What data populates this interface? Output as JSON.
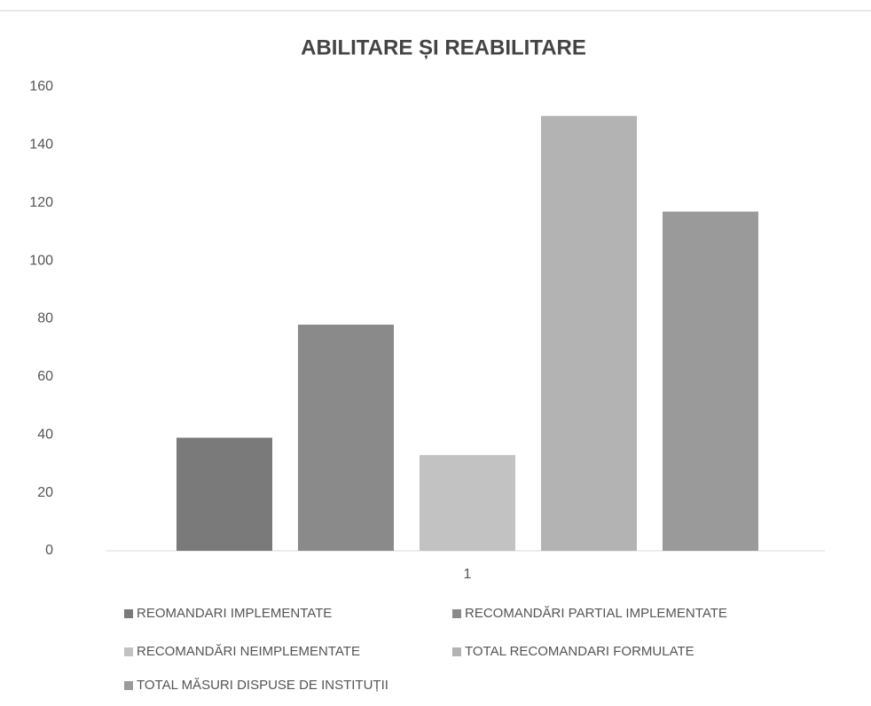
{
  "chart_data": {
    "type": "bar",
    "title": "ABILITARE ȘI REABILITARE",
    "categories": [
      "1"
    ],
    "series": [
      {
        "name": "REOMANDARI IMPLEMENTATE",
        "color": "#7a7a7a",
        "values": [
          39
        ]
      },
      {
        "name": "RECOMANDĂRI PARTIAL IMPLEMENTATE",
        "color": "#8a8a8a",
        "values": [
          78
        ]
      },
      {
        "name": "RECOMANDĂRI NEIMPLEMENTATE",
        "color": "#c2c2c2",
        "values": [
          33
        ]
      },
      {
        "name": "TOTAL RECOMANDARI FORMULATE",
        "color": "#b3b3b3",
        "values": [
          150
        ]
      },
      {
        "name": "TOTAL MĂSURI DISPUSE DE INSTITUȚII",
        "color": "#9a9a9a",
        "values": [
          117
        ]
      }
    ],
    "ylim": [
      0,
      160
    ],
    "yticks": [
      0,
      20,
      40,
      60,
      80,
      100,
      120,
      140,
      160
    ],
    "grid": false,
    "legend": "bottom"
  }
}
